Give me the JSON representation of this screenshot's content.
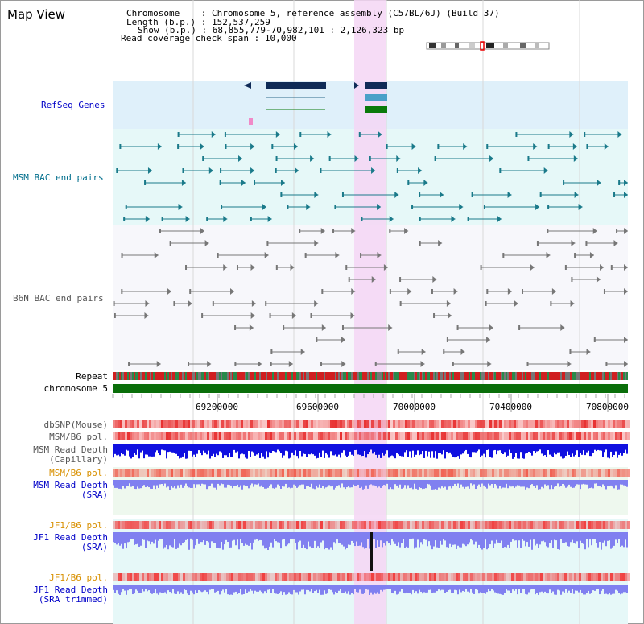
{
  "title": "Map View",
  "info": {
    "chromosome_label": "Chromosome    ",
    "chromosome_value": "Chromosome 5, reference assembly (C57BL/6J) (Build 37)",
    "length_label": "Length (b.p.)",
    "length_value": "152,537,259",
    "show_label": "Show (b.p.)",
    "show_value": "68,855,779-70,982,101 : 2,126,323 bp",
    "coverage_label": "Read coverage check span",
    "coverage_value": "10,000"
  },
  "tracks": {
    "refseq": "RefSeq Genes",
    "msm_bac": "MSM BAC end pairs",
    "b6n_bac": "B6N BAC end pairs",
    "repeat": "Repeat",
    "chromosome": "chromosome 5",
    "dbsnp": "dbSNP(Mouse)",
    "msm_b6_pol_1": "MSM/B6 pol.",
    "msm_depth_cap_1": "MSM Read Depth",
    "msm_depth_cap_2": "(Capillary)",
    "msm_b6_pol_2": "MSM/B6 pol.",
    "msm_depth_sra_1": "MSM Read Depth",
    "msm_depth_sra_2": "(SRA)",
    "jf1_b6_pol_1": "JF1/B6 pol.",
    "jf1_depth_sra_1": "JF1 Read Depth",
    "jf1_depth_sra_2": "(SRA)",
    "jf1_b6_pol_2": "JF1/B6 pol.",
    "jf1_depth_trim_1": "JF1 Read Depth",
    "jf1_depth_trim_2": "(SRA trimmed)"
  },
  "axis_ticks": [
    "69200000",
    "69600000",
    "70000000",
    "70400000",
    "70800000"
  ],
  "colors": {
    "refseq_bg": "#dff0fa",
    "msm_bg": "#e6f8f8",
    "highlight": "#f4d6f4",
    "gene_dark": "#0f2b57",
    "gene_mid": "#4aa0c8",
    "gene_green": "#0a7a0a",
    "chromosome_bar": "#0a6e0a",
    "msm_pair": "#1a7a8a",
    "b6n_pair": "#777777",
    "depth_blue": "#1010e0",
    "depth_light": "#8080f0",
    "pol_red": "#f04040"
  }
}
